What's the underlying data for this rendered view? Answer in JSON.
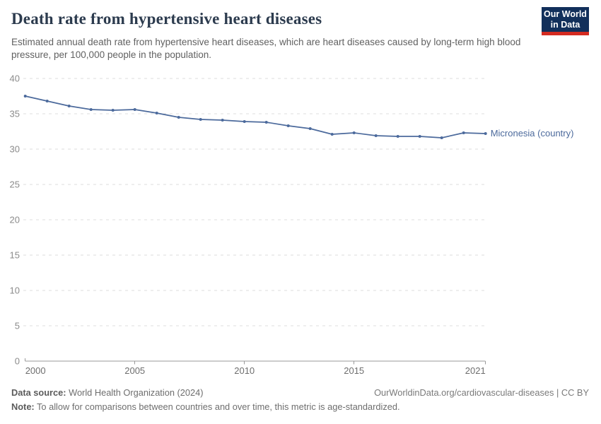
{
  "header": {
    "title": "Death rate from hypertensive heart diseases",
    "subtitle": "Estimated annual death rate from hypertensive heart diseases, which are heart diseases caused by long-term high blood pressure, per 100,000 people in the population."
  },
  "logo": {
    "line1": "Our World",
    "line2": "in Data"
  },
  "chart_data": {
    "type": "line",
    "title": "Death rate from hypertensive heart diseases",
    "x": [
      2000,
      2001,
      2002,
      2003,
      2004,
      2005,
      2006,
      2007,
      2008,
      2009,
      2010,
      2011,
      2012,
      2013,
      2014,
      2015,
      2016,
      2017,
      2018,
      2019,
      2020,
      2021
    ],
    "series": [
      {
        "name": "Micronesia (country)",
        "color": "#4c6a9c",
        "values": [
          37.5,
          36.8,
          36.1,
          35.6,
          35.5,
          35.6,
          35.1,
          34.5,
          34.2,
          34.1,
          33.9,
          33.8,
          33.3,
          32.9,
          32.1,
          32.3,
          31.9,
          31.8,
          31.8,
          31.6,
          32.3,
          32.2
        ]
      }
    ],
    "xlabel": "",
    "ylabel": "",
    "ylim": [
      0,
      40
    ],
    "yticks": [
      0,
      5,
      10,
      15,
      20,
      25,
      30,
      35,
      40
    ],
    "xticks": [
      2000,
      2005,
      2010,
      2015,
      2021
    ],
    "grid": "horizontal-dashed",
    "legend_position": "line-end-label"
  },
  "footer": {
    "datasource_label": "Data source:",
    "datasource_value": "World Health Organization (2024)",
    "credit": "OurWorldinData.org/cardiovascular-diseases | CC BY",
    "note_label": "Note:",
    "note_value": "To allow for comparisons between countries and over time, this metric is age-standardized."
  },
  "colors": {
    "line": "#4c6a9c",
    "title": "#2c3b4e",
    "subtitle": "#616161",
    "gridline": "#dedede",
    "axis": "#999999",
    "tick_label": "#6e6e6e",
    "ytick_label": "#8b8b8b",
    "logo_bg": "#12305b",
    "logo_accent": "#d42b21"
  }
}
